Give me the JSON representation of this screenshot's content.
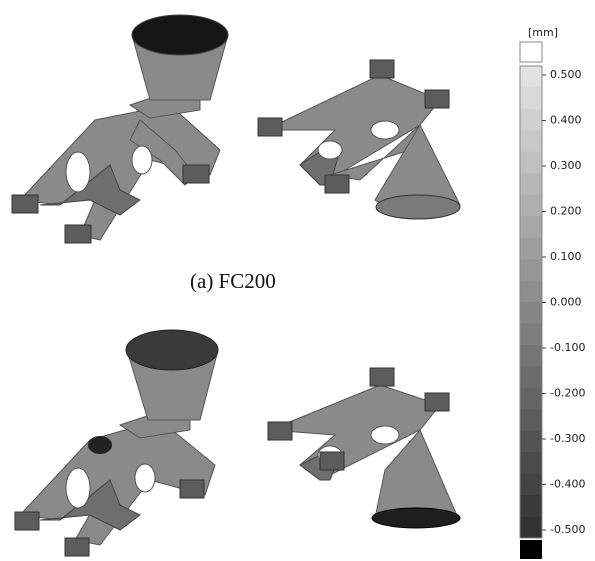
{
  "caption": "(a)  FC200",
  "colorbar": {
    "unit": "[mm]",
    "labels": [
      "0.500",
      "0.400",
      "0.300",
      "0.200",
      "0.100",
      "0.000",
      "-0.100",
      "-0.200",
      "-0.300",
      "-0.400",
      "-0.500"
    ]
  }
}
